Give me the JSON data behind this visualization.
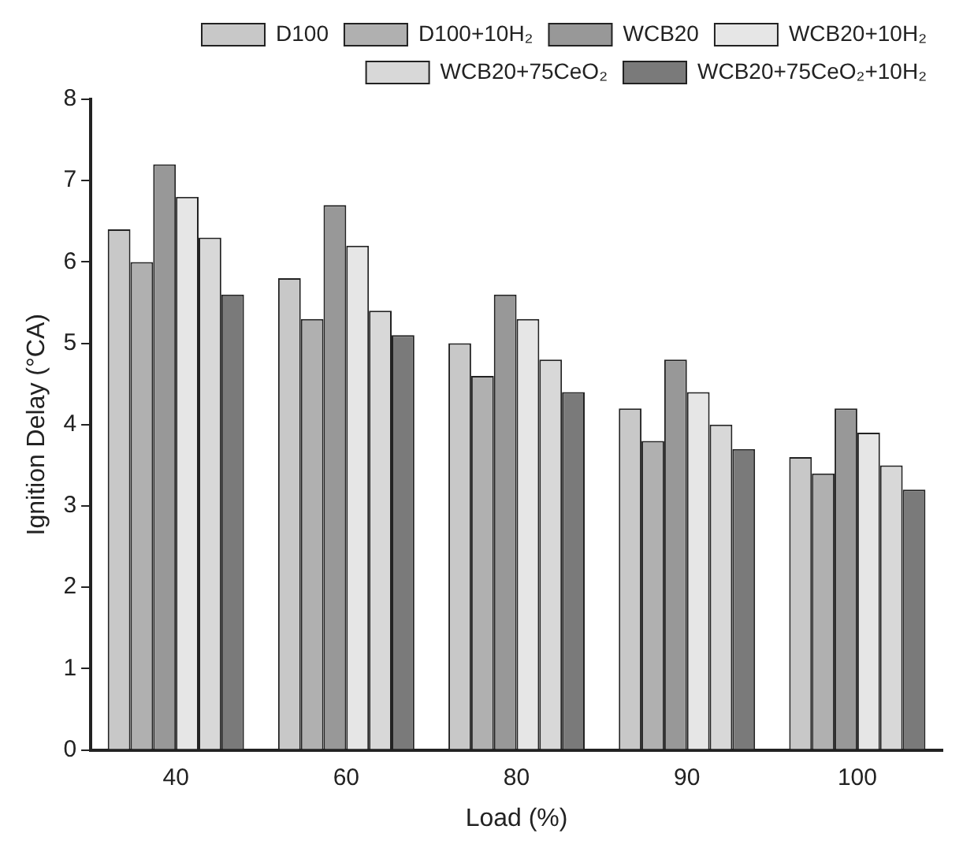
{
  "chart_data": {
    "type": "bar",
    "xlabel": "Load (%)",
    "ylabel": "Ignition Delay (°CA)",
    "categories": [
      "40",
      "60",
      "80",
      "90",
      "100"
    ],
    "series": [
      {
        "name": "D100",
        "color": "#c8c8c8",
        "values": [
          6.4,
          5.8,
          5.0,
          4.2,
          3.6
        ]
      },
      {
        "name": "D100+10H₂",
        "color": "#b0b0b0",
        "values": [
          6.0,
          5.3,
          4.6,
          3.8,
          3.4
        ]
      },
      {
        "name": "WCB20",
        "color": "#989898",
        "values": [
          7.2,
          6.7,
          5.6,
          4.8,
          4.2
        ]
      },
      {
        "name": "WCB20+10H₂",
        "color": "#e6e6e6",
        "values": [
          6.8,
          6.2,
          5.3,
          4.4,
          3.9
        ]
      },
      {
        "name": "WCB20+75CeO₂",
        "color": "#d8d8d8",
        "values": [
          6.3,
          5.4,
          4.8,
          4.0,
          3.5
        ]
      },
      {
        "name": "WCB20+75CeO₂+10H₂",
        "color": "#7a7a7a",
        "values": [
          5.6,
          5.1,
          4.4,
          3.7,
          3.2
        ]
      }
    ],
    "ylim": [
      0,
      8
    ],
    "yticks": [
      0,
      1,
      2,
      3,
      4,
      5,
      6,
      7,
      8
    ],
    "grid": false,
    "legend": "top right"
  }
}
